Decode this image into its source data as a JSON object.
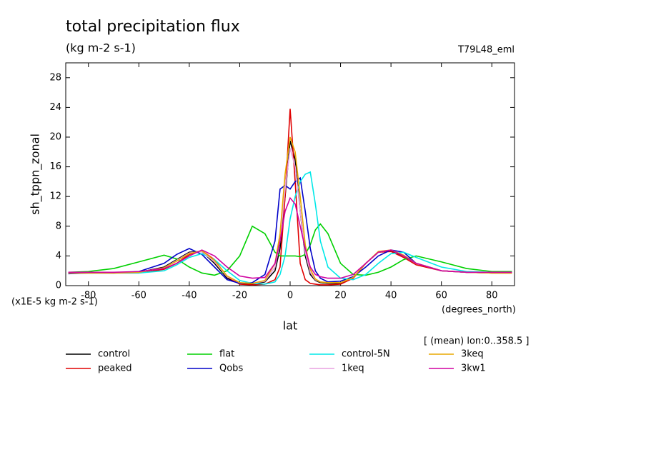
{
  "chart_data": {
    "type": "line",
    "title": "total precipitation flux",
    "subtitle": "(kg m-2 s-1)",
    "annotations": [
      "T79L48_eml",
      "(x1E-5 kg m-2 s-1)",
      "(degrees_north)",
      "[ (mean) lon:0..358.5 ]"
    ],
    "x_label": "lat",
    "y_label": "sh_tppn_zonal",
    "x": [
      -88,
      -80,
      -70,
      -60,
      -50,
      -45,
      -40,
      -35,
      -30,
      -25,
      -20,
      -15,
      -10,
      -6,
      -4,
      -2,
      0,
      2,
      4,
      6,
      8,
      10,
      12,
      15,
      20,
      25,
      30,
      35,
      40,
      45,
      50,
      60,
      70,
      80,
      88
    ],
    "xlim": [
      -89,
      89
    ],
    "xticks": [
      -80,
      -60,
      -40,
      -20,
      0,
      20,
      40,
      60,
      80
    ],
    "ylim": [
      0,
      30
    ],
    "yticks": [
      0,
      4,
      8,
      12,
      16,
      20,
      24,
      28
    ],
    "grid": false,
    "series": [
      {
        "name": "control",
        "color": "#000000",
        "values": [
          1.7,
          1.7,
          1.7,
          1.8,
          2.5,
          3.5,
          4.5,
          4.6,
          3,
          1,
          0.3,
          0.2,
          0.5,
          2,
          5,
          12,
          19.5,
          17,
          10,
          4,
          1.5,
          0.7,
          0.4,
          0.3,
          0.3,
          1,
          3,
          4.5,
          4.7,
          4,
          3,
          2,
          1.8,
          1.7,
          1.7
        ]
      },
      {
        "name": "peaked",
        "color": "#e00000",
        "values": [
          1.8,
          1.8,
          1.7,
          1.7,
          2.2,
          3,
          4.2,
          4.7,
          3.5,
          1.2,
          0.2,
          0.1,
          0.2,
          0.8,
          2.5,
          12,
          23.8,
          14,
          3,
          0.8,
          0.3,
          0.2,
          0.1,
          0.1,
          0.2,
          1,
          3,
          4.5,
          4.6,
          3.8,
          2.8,
          2,
          1.8,
          1.7,
          1.7
        ]
      },
      {
        "name": "flat",
        "color": "#00d000",
        "values": [
          1.8,
          1.9,
          2.3,
          3.2,
          4.1,
          3.6,
          2.5,
          1.7,
          1.4,
          2,
          4,
          8,
          7,
          4.5,
          4,
          4,
          4,
          4,
          3.9,
          4.2,
          5.5,
          7.5,
          8.3,
          7,
          3,
          1.5,
          1.4,
          1.8,
          2.5,
          3.5,
          4,
          3.2,
          2.3,
          1.9,
          1.9
        ]
      },
      {
        "name": "Qobs",
        "color": "#0000c8",
        "values": [
          1.6,
          1.7,
          1.7,
          1.9,
          3,
          4.2,
          5,
          4.2,
          2.5,
          0.8,
          0.3,
          0.4,
          1.5,
          6,
          13,
          13.5,
          13,
          14,
          14.5,
          10,
          5,
          2,
          1,
          0.5,
          0.6,
          1.2,
          2.5,
          4,
          4.8,
          4.5,
          3,
          2,
          1.8,
          1.8,
          1.8
        ]
      },
      {
        "name": "control-5N",
        "color": "#00e8e8",
        "values": [
          1.8,
          1.8,
          1.7,
          1.7,
          2,
          2.8,
          3.8,
          4.3,
          3.5,
          2,
          0.7,
          0.3,
          0.2,
          0.5,
          1.5,
          4,
          9,
          12,
          14,
          15,
          15.3,
          11,
          6,
          2.5,
          1,
          0.8,
          1.5,
          3,
          4.3,
          4.5,
          3.8,
          2.5,
          1.9,
          1.8,
          1.8
        ]
      },
      {
        "name": "1keq",
        "color": "#e8a0e0",
        "values": [
          1.7,
          1.7,
          1.7,
          1.8,
          2.4,
          3.4,
          4.4,
          4.6,
          3.2,
          1.2,
          0.4,
          0.3,
          0.6,
          2.5,
          6,
          13,
          18.5,
          16,
          10,
          4.5,
          1.8,
          0.8,
          0.5,
          0.4,
          0.4,
          1.1,
          3,
          4.5,
          4.8,
          4.1,
          3,
          2,
          1.8,
          1.7,
          1.7
        ]
      },
      {
        "name": "3keq",
        "color": "#e8a800",
        "values": [
          1.7,
          1.7,
          1.7,
          1.8,
          2.4,
          3.3,
          4.3,
          4.7,
          3.4,
          1.3,
          0.4,
          0.3,
          0.7,
          3,
          7,
          15,
          20,
          18,
          12,
          5.5,
          2.2,
          0.9,
          0.5,
          0.4,
          0.4,
          1.1,
          3,
          4.6,
          4.8,
          4.1,
          3,
          2,
          1.8,
          1.7,
          1.7
        ]
      },
      {
        "name": "3kw1",
        "color": "#d000a0",
        "values": [
          1.8,
          1.8,
          1.8,
          1.9,
          2.3,
          3,
          4,
          4.8,
          4,
          2.5,
          1.3,
          1,
          1.1,
          3,
          6,
          10,
          11.8,
          11,
          8,
          5,
          2.5,
          1.5,
          1.2,
          1,
          1,
          1.5,
          3,
          4.5,
          4.8,
          4,
          3,
          2,
          1.8,
          1.8,
          1.8
        ]
      }
    ]
  }
}
